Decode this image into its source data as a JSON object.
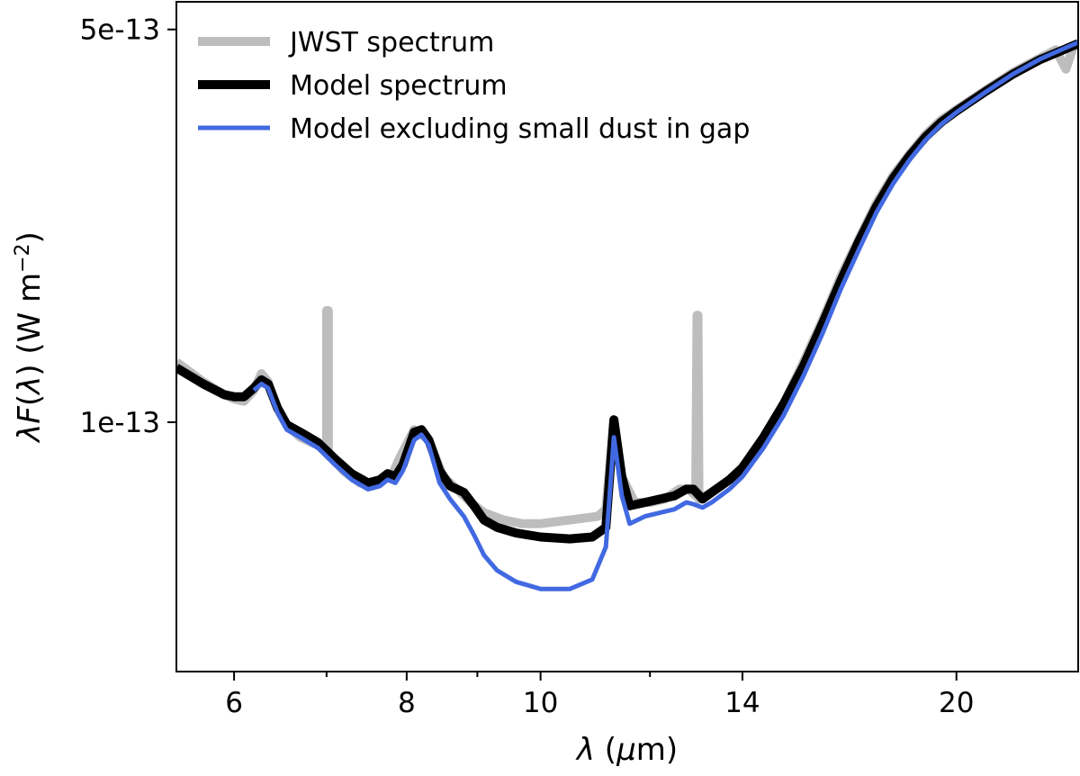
{
  "chart_data": {
    "type": "line",
    "title": "",
    "xlabel": "λ (μm)",
    "ylabel": "λF(λ) (W m⁻²)",
    "x_scale": "log",
    "y_scale": "log",
    "xlim": [
      5.45,
      24.5
    ],
    "ylim": [
      3.6e-14,
      5.6e-13
    ],
    "x_ticks": [
      {
        "value": 6,
        "label": "6",
        "labeled": true
      },
      {
        "value": 7,
        "label": "",
        "labeled": false
      },
      {
        "value": 8,
        "label": "8",
        "labeled": true
      },
      {
        "value": 9,
        "label": "",
        "labeled": false
      },
      {
        "value": 10,
        "label": "10",
        "labeled": true
      },
      {
        "value": 12,
        "label": "",
        "labeled": false
      },
      {
        "value": 14,
        "label": "14",
        "labeled": true
      },
      {
        "value": 20,
        "label": "20",
        "labeled": true
      }
    ],
    "y_ticks": [
      {
        "value": 1e-13,
        "label": "1e-13"
      },
      {
        "value": 5e-13,
        "label": "5e-13"
      }
    ],
    "legend_position": "top-left",
    "series": [
      {
        "name": "JWST spectrum",
        "color": "#bdbdbd",
        "points": [
          [
            5.45,
            1.28e-13
          ],
          [
            5.7,
            1.18e-13
          ],
          [
            5.9,
            1.12e-13
          ],
          [
            6.0,
            1.1e-13
          ],
          [
            6.1,
            1.09e-13
          ],
          [
            6.2,
            1.14e-13
          ],
          [
            6.28,
            1.22e-13
          ],
          [
            6.35,
            1.18e-13
          ],
          [
            6.45,
            1.06e-13
          ],
          [
            6.55,
            9.9e-14
          ],
          [
            6.7,
            9.4e-14
          ],
          [
            6.9,
            9.1e-14
          ],
          [
            7.0,
            8.9e-14
          ],
          [
            7.0,
            1.58e-13
          ],
          [
            7.02,
            1.58e-13
          ],
          [
            7.02,
            8.8e-14
          ],
          [
            7.2,
            8.2e-14
          ],
          [
            7.4,
            7.8e-14
          ],
          [
            7.55,
            7.7e-14
          ],
          [
            7.7,
            8e-14
          ],
          [
            7.8,
            8e-14
          ],
          [
            7.9,
            8.6e-14
          ],
          [
            8.1,
            9.7e-14
          ],
          [
            8.3,
            9.3e-14
          ],
          [
            8.5,
            8e-14
          ],
          [
            8.7,
            7.6e-14
          ],
          [
            8.9,
            7.2e-14
          ],
          [
            9.1,
            6.9e-14
          ],
          [
            9.4,
            6.7e-14
          ],
          [
            9.7,
            6.6e-14
          ],
          [
            10.0,
            6.6e-14
          ],
          [
            10.5,
            6.7e-14
          ],
          [
            11.0,
            6.8e-14
          ],
          [
            11.15,
            7e-14
          ],
          [
            11.3,
            1.01e-13
          ],
          [
            11.45,
            8e-14
          ],
          [
            11.7,
            7.2e-14
          ],
          [
            12.0,
            7.2e-14
          ],
          [
            12.3,
            7.3e-14
          ],
          [
            12.6,
            7.6e-14
          ],
          [
            12.8,
            7.6e-14
          ],
          [
            12.95,
            7.4e-14
          ],
          [
            12.98,
            1.55e-13
          ],
          [
            13.0,
            1.55e-13
          ],
          [
            13.02,
            7.3e-14
          ],
          [
            13.3,
            7.5e-14
          ],
          [
            13.7,
            7.9e-14
          ],
          [
            14.0,
            8.3e-14
          ],
          [
            14.5,
            9.4e-14
          ],
          [
            15.0,
            1.08e-13
          ],
          [
            15.5,
            1.28e-13
          ],
          [
            16.0,
            1.52e-13
          ],
          [
            16.5,
            1.82e-13
          ],
          [
            17.0,
            2.12e-13
          ],
          [
            17.5,
            2.45e-13
          ],
          [
            18.0,
            2.75e-13
          ],
          [
            18.5,
            3e-13
          ],
          [
            19.0,
            3.25e-13
          ],
          [
            19.5,
            3.45e-13
          ],
          [
            20.0,
            3.6e-13
          ],
          [
            21.0,
            3.9e-13
          ],
          [
            22.0,
            4.2e-13
          ],
          [
            23.0,
            4.45e-13
          ],
          [
            23.6,
            4.6e-13
          ],
          [
            24.0,
            4.25e-13
          ],
          [
            24.3,
            4.65e-13
          ],
          [
            24.5,
            4.7e-13
          ]
        ]
      },
      {
        "name": "Model spectrum",
        "color": "#000000",
        "points": [
          [
            5.45,
            1.25e-13
          ],
          [
            5.7,
            1.17e-13
          ],
          [
            5.9,
            1.12e-13
          ],
          [
            6.0,
            1.11e-13
          ],
          [
            6.1,
            1.11e-13
          ],
          [
            6.2,
            1.15e-13
          ],
          [
            6.28,
            1.19e-13
          ],
          [
            6.35,
            1.17e-13
          ],
          [
            6.45,
            1.06e-13
          ],
          [
            6.55,
            9.9e-14
          ],
          [
            6.7,
            9.6e-14
          ],
          [
            6.9,
            9.2e-14
          ],
          [
            7.1,
            8.6e-14
          ],
          [
            7.3,
            8.1e-14
          ],
          [
            7.5,
            7.8e-14
          ],
          [
            7.65,
            7.9e-14
          ],
          [
            7.75,
            8.1e-14
          ],
          [
            7.85,
            8e-14
          ],
          [
            7.95,
            8.4e-14
          ],
          [
            8.1,
            9.6e-14
          ],
          [
            8.2,
            9.7e-14
          ],
          [
            8.3,
            9.3e-14
          ],
          [
            8.45,
            8.2e-14
          ],
          [
            8.6,
            7.7e-14
          ],
          [
            8.8,
            7.5e-14
          ],
          [
            8.95,
            7.1e-14
          ],
          [
            9.1,
            6.7e-14
          ],
          [
            9.3,
            6.5e-14
          ],
          [
            9.6,
            6.35e-14
          ],
          [
            10.0,
            6.25e-14
          ],
          [
            10.5,
            6.2e-14
          ],
          [
            10.9,
            6.25e-14
          ],
          [
            11.15,
            6.5e-14
          ],
          [
            11.3,
            1.01e-13
          ],
          [
            11.45,
            8e-14
          ],
          [
            11.6,
            7.1e-14
          ],
          [
            11.9,
            7.2e-14
          ],
          [
            12.2,
            7.3e-14
          ],
          [
            12.5,
            7.4e-14
          ],
          [
            12.75,
            7.6e-14
          ],
          [
            12.9,
            7.6e-14
          ],
          [
            13.1,
            7.3e-14
          ],
          [
            13.3,
            7.5e-14
          ],
          [
            13.7,
            7.9e-14
          ],
          [
            14.0,
            8.3e-14
          ],
          [
            14.5,
            9.4e-14
          ],
          [
            15.0,
            1.08e-13
          ],
          [
            15.5,
            1.26e-13
          ],
          [
            16.0,
            1.5e-13
          ],
          [
            16.5,
            1.79e-13
          ],
          [
            17.0,
            2.1e-13
          ],
          [
            17.5,
            2.42e-13
          ],
          [
            18.0,
            2.72e-13
          ],
          [
            18.5,
            2.98e-13
          ],
          [
            19.0,
            3.22e-13
          ],
          [
            19.5,
            3.42e-13
          ],
          [
            20.0,
            3.58e-13
          ],
          [
            21.0,
            3.88e-13
          ],
          [
            22.0,
            4.17e-13
          ],
          [
            23.0,
            4.42e-13
          ],
          [
            24.0,
            4.62e-13
          ],
          [
            24.5,
            4.72e-13
          ]
        ]
      },
      {
        "name": "Model excluding small dust in gap",
        "color": "#4169e1",
        "points": [
          [
            6.2,
            1.14e-13
          ],
          [
            6.28,
            1.17e-13
          ],
          [
            6.35,
            1.15e-13
          ],
          [
            6.45,
            1.04e-13
          ],
          [
            6.55,
            9.7e-14
          ],
          [
            6.7,
            9.4e-14
          ],
          [
            6.9,
            9e-14
          ],
          [
            7.1,
            8.4e-14
          ],
          [
            7.3,
            7.9e-14
          ],
          [
            7.5,
            7.6e-14
          ],
          [
            7.65,
            7.7e-14
          ],
          [
            7.75,
            7.9e-14
          ],
          [
            7.85,
            7.8e-14
          ],
          [
            7.95,
            8.2e-14
          ],
          [
            8.1,
            9.3e-14
          ],
          [
            8.2,
            9.5e-14
          ],
          [
            8.3,
            9.1e-14
          ],
          [
            8.45,
            7.8e-14
          ],
          [
            8.6,
            7.3e-14
          ],
          [
            8.8,
            6.8e-14
          ],
          [
            8.95,
            6.3e-14
          ],
          [
            9.1,
            5.8e-14
          ],
          [
            9.3,
            5.45e-14
          ],
          [
            9.6,
            5.2e-14
          ],
          [
            10.0,
            5.05e-14
          ],
          [
            10.5,
            5.05e-14
          ],
          [
            10.9,
            5.25e-14
          ],
          [
            11.15,
            6e-14
          ],
          [
            11.3,
            9.4e-14
          ],
          [
            11.45,
            7.4e-14
          ],
          [
            11.6,
            6.6e-14
          ],
          [
            11.9,
            6.8e-14
          ],
          [
            12.2,
            6.9e-14
          ],
          [
            12.5,
            7e-14
          ],
          [
            12.75,
            7.2e-14
          ],
          [
            12.9,
            7.15e-14
          ],
          [
            13.1,
            7.05e-14
          ],
          [
            13.3,
            7.2e-14
          ],
          [
            13.7,
            7.6e-14
          ],
          [
            14.0,
            8e-14
          ],
          [
            14.5,
            9e-14
          ],
          [
            15.0,
            1.03e-13
          ],
          [
            15.5,
            1.21e-13
          ],
          [
            16.0,
            1.44e-13
          ],
          [
            16.5,
            1.73e-13
          ],
          [
            17.0,
            2.03e-13
          ],
          [
            17.5,
            2.36e-13
          ],
          [
            18.0,
            2.66e-13
          ],
          [
            18.5,
            2.93e-13
          ],
          [
            19.0,
            3.18e-13
          ],
          [
            19.5,
            3.39e-13
          ],
          [
            20.0,
            3.56e-13
          ],
          [
            21.0,
            3.87e-13
          ],
          [
            22.0,
            4.17e-13
          ],
          [
            23.0,
            4.43e-13
          ],
          [
            24.0,
            4.64e-13
          ],
          [
            24.5,
            4.74e-13
          ]
        ]
      }
    ]
  }
}
